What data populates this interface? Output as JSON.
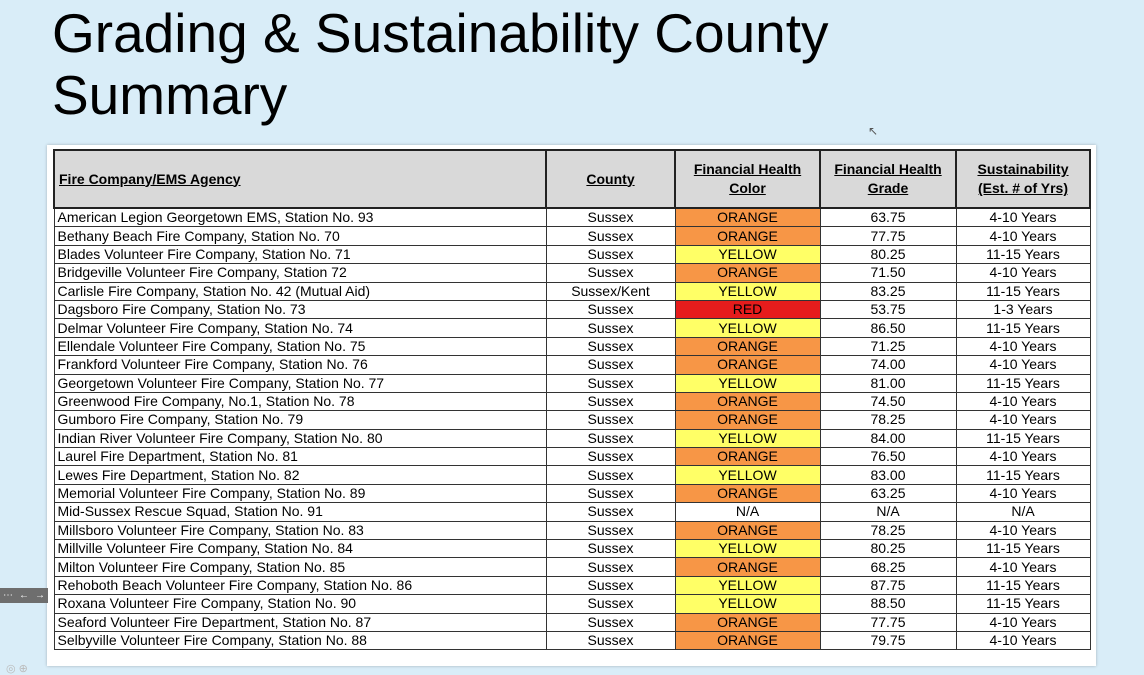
{
  "slide": {
    "title": "Grading & Sustainability County Summary"
  },
  "table": {
    "headers": {
      "agency": "Fire Company/EMS Agency",
      "county": "County",
      "color_line1": "Financial Health",
      "color_line2": "Color",
      "grade_line1": "Financial Health",
      "grade_line2": "Grade",
      "sust_line1": "Sustainability",
      "sust_line2": "(Est. # of Yrs)"
    },
    "rows": [
      {
        "agency": "American Legion Georgetown EMS, Station No. 93",
        "county": "Sussex",
        "color": "ORANGE",
        "grade": "63.75",
        "years": "4-10 Years"
      },
      {
        "agency": "Bethany Beach Fire Company, Station No. 70",
        "county": "Sussex",
        "color": "ORANGE",
        "grade": "77.75",
        "years": "4-10 Years"
      },
      {
        "agency": "Blades Volunteer Fire Company, Station No. 71",
        "county": "Sussex",
        "color": "YELLOW",
        "grade": "80.25",
        "years": "11-15 Years"
      },
      {
        "agency": "Bridgeville Volunteer Fire Company, Station 72",
        "county": "Sussex",
        "color": "ORANGE",
        "grade": "71.50",
        "years": "4-10 Years"
      },
      {
        "agency": "Carlisle Fire Company, Station No. 42 (Mutual Aid)",
        "county": "Sussex/Kent",
        "color": "YELLOW",
        "grade": "83.25",
        "years": "11-15 Years"
      },
      {
        "agency": "Dagsboro Fire Company, Station No. 73",
        "county": "Sussex",
        "color": "RED",
        "grade": "53.75",
        "years": "1-3 Years"
      },
      {
        "agency": "Delmar Volunteer Fire Company, Station No. 74",
        "county": "Sussex",
        "color": "YELLOW",
        "grade": "86.50",
        "years": "11-15 Years"
      },
      {
        "agency": "Ellendale Volunteer Fire Company, Station No. 75",
        "county": "Sussex",
        "color": "ORANGE",
        "grade": "71.25",
        "years": "4-10 Years"
      },
      {
        "agency": "Frankford Volunteer Fire Company, Station No. 76",
        "county": "Sussex",
        "color": "ORANGE",
        "grade": "74.00",
        "years": "4-10 Years"
      },
      {
        "agency": "Georgetown Volunteer Fire Company, Station No. 77",
        "county": "Sussex",
        "color": "YELLOW",
        "grade": "81.00",
        "years": "11-15 Years"
      },
      {
        "agency": "Greenwood Fire Company, No.1, Station No. 78",
        "county": "Sussex",
        "color": "ORANGE",
        "grade": "74.50",
        "years": "4-10 Years"
      },
      {
        "agency": "Gumboro Fire Company, Station No. 79",
        "county": "Sussex",
        "color": "ORANGE",
        "grade": "78.25",
        "years": "4-10 Years"
      },
      {
        "agency": "Indian River Volunteer Fire Company, Station No. 80",
        "county": "Sussex",
        "color": "YELLOW",
        "grade": "84.00",
        "years": "11-15 Years"
      },
      {
        "agency": "Laurel Fire Department, Station No. 81",
        "county": "Sussex",
        "color": "ORANGE",
        "grade": "76.50",
        "years": "4-10 Years"
      },
      {
        "agency": "Lewes Fire Department, Station No. 82",
        "county": "Sussex",
        "color": "YELLOW",
        "grade": "83.00",
        "years": "11-15 Years"
      },
      {
        "agency": "Memorial Volunteer Fire Company, Station No. 89",
        "county": "Sussex",
        "color": "ORANGE",
        "grade": "63.25",
        "years": "4-10 Years"
      },
      {
        "agency": "Mid-Sussex Rescue Squad, Station No. 91",
        "county": "Sussex",
        "color": "N/A",
        "grade": "N/A",
        "years": "N/A"
      },
      {
        "agency": "Millsboro Volunteer Fire Company, Station No. 83",
        "county": "Sussex",
        "color": "ORANGE",
        "grade": "78.25",
        "years": "4-10 Years"
      },
      {
        "agency": "Millville Volunteer Fire Company, Station No. 84",
        "county": "Sussex",
        "color": "YELLOW",
        "grade": "80.25",
        "years": "11-15 Years"
      },
      {
        "agency": "Milton Volunteer Fire Company, Station No. 85",
        "county": "Sussex",
        "color": "ORANGE",
        "grade": "68.25",
        "years": "4-10 Years"
      },
      {
        "agency": "Rehoboth Beach Volunteer Fire Company, Station No. 86",
        "county": "Sussex",
        "color": "YELLOW",
        "grade": "87.75",
        "years": "11-15 Years"
      },
      {
        "agency": "Roxana Volunteer Fire Company, Station No. 90",
        "county": "Sussex",
        "color": "YELLOW",
        "grade": "88.50",
        "years": "11-15 Years"
      },
      {
        "agency": "Seaford Volunteer Fire Department, Station No. 87",
        "county": "Sussex",
        "color": "ORANGE",
        "grade": "77.75",
        "years": "4-10 Years"
      },
      {
        "agency": "Selbyville Volunteer Fire Company, Station No. 88",
        "county": "Sussex",
        "color": "ORANGE",
        "grade": "79.75",
        "years": "4-10 Years"
      }
    ]
  },
  "colors": {
    "background": "#d9edf8",
    "header_fill": "#d9d9d9",
    "orange": "#f79646",
    "yellow": "#ffff66",
    "red": "#e61c1c"
  },
  "icons": {
    "cursor": "mouse-pointer-icon",
    "nav_prev": "arrow-left-icon",
    "nav_next": "arrow-right-icon",
    "nav_more": "more-icon"
  }
}
